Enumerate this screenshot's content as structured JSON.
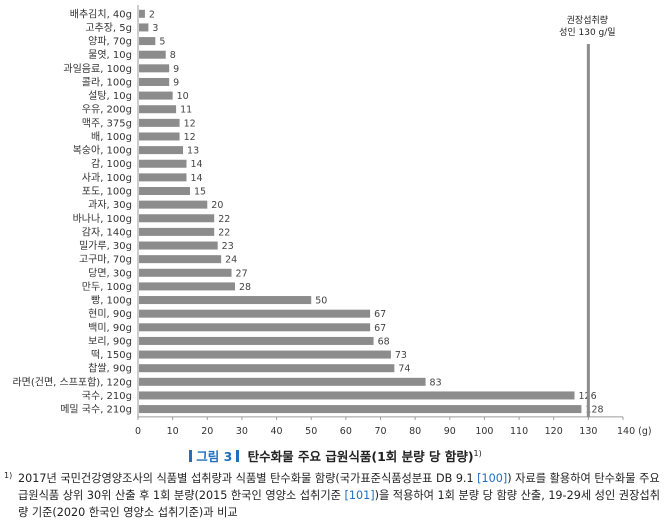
{
  "chart_data": {
    "type": "bar",
    "orientation": "horizontal",
    "categories": [
      "배추김치, 40g",
      "고추장, 5g",
      "양파, 70g",
      "물엿, 10g",
      "과일음료, 100g",
      "콜라, 100g",
      "설탕, 10g",
      "우유, 200g",
      "맥주, 375g",
      "배, 100g",
      "복숭아, 100g",
      "감, 100g",
      "사과, 100g",
      "포도, 100g",
      "과자, 30g",
      "바나나, 100g",
      "감자, 140g",
      "밀가루, 30g",
      "고구마, 70g",
      "당면, 30g",
      "만두, 100g",
      "빵, 100g",
      "현미, 90g",
      "백미, 90g",
      "보리, 90g",
      "떡, 150g",
      "찹쌀, 90g",
      "라면(건면, 스프포함), 120g",
      "국수, 210g",
      "메밀 국수, 210g"
    ],
    "values": [
      2,
      3,
      5,
      8,
      9,
      9,
      10,
      11,
      12,
      12,
      13,
      14,
      14,
      15,
      20,
      22,
      22,
      23,
      24,
      27,
      28,
      50,
      67,
      67,
      68,
      73,
      74,
      83,
      126,
      128
    ],
    "value_labels": [
      "2",
      "3",
      "5",
      "8",
      "9",
      "9",
      "10",
      "11",
      "12",
      "12",
      "13",
      "14",
      "14",
      "15",
      "20",
      "22",
      "22",
      "23",
      "24",
      "27",
      "28",
      "50",
      "67",
      "67",
      "68",
      "73",
      "74",
      "83",
      "126",
      "128"
    ],
    "xlim": [
      0,
      140
    ],
    "x_ticks": [
      "0",
      "10",
      "20",
      "30",
      "40",
      "50",
      "60",
      "70",
      "80",
      "90",
      "100",
      "110",
      "120",
      "130",
      "140 (g)"
    ],
    "reference_line": {
      "value": 130,
      "label_line1": "권장섭취량",
      "label_line2": "성인 130 g/일"
    },
    "bar_color": "#8c8c8c",
    "reference_color": "#8c8c8c"
  },
  "caption": {
    "figure_number": "그림 3",
    "title": "탄수화물 주요 급원식품(1회 분량 당 함량)",
    "superscript": "1)",
    "accent_color": "#1f6fbf"
  },
  "footnote": {
    "mark": "1)",
    "part1": "2017년 국민건강영양조사의 식품별 섭취량과 식품별 탄수화물 함량(국가표준식품성분표 DB 9.1 ",
    "ref1": "[100]",
    "part2": ") 자료를 활용하여 탄수화물 주요 급원식품 상위 30위 산출 후 1회 분량(2015 한국인 영양소 섭취기준 ",
    "ref2": "[101]",
    "part3": ")을 적용하여 1회 분량 당 함량 산출, 19-29세 성인 권장섭취량 기준(2020 한국인 영양소 섭취기준)과 비교"
  }
}
